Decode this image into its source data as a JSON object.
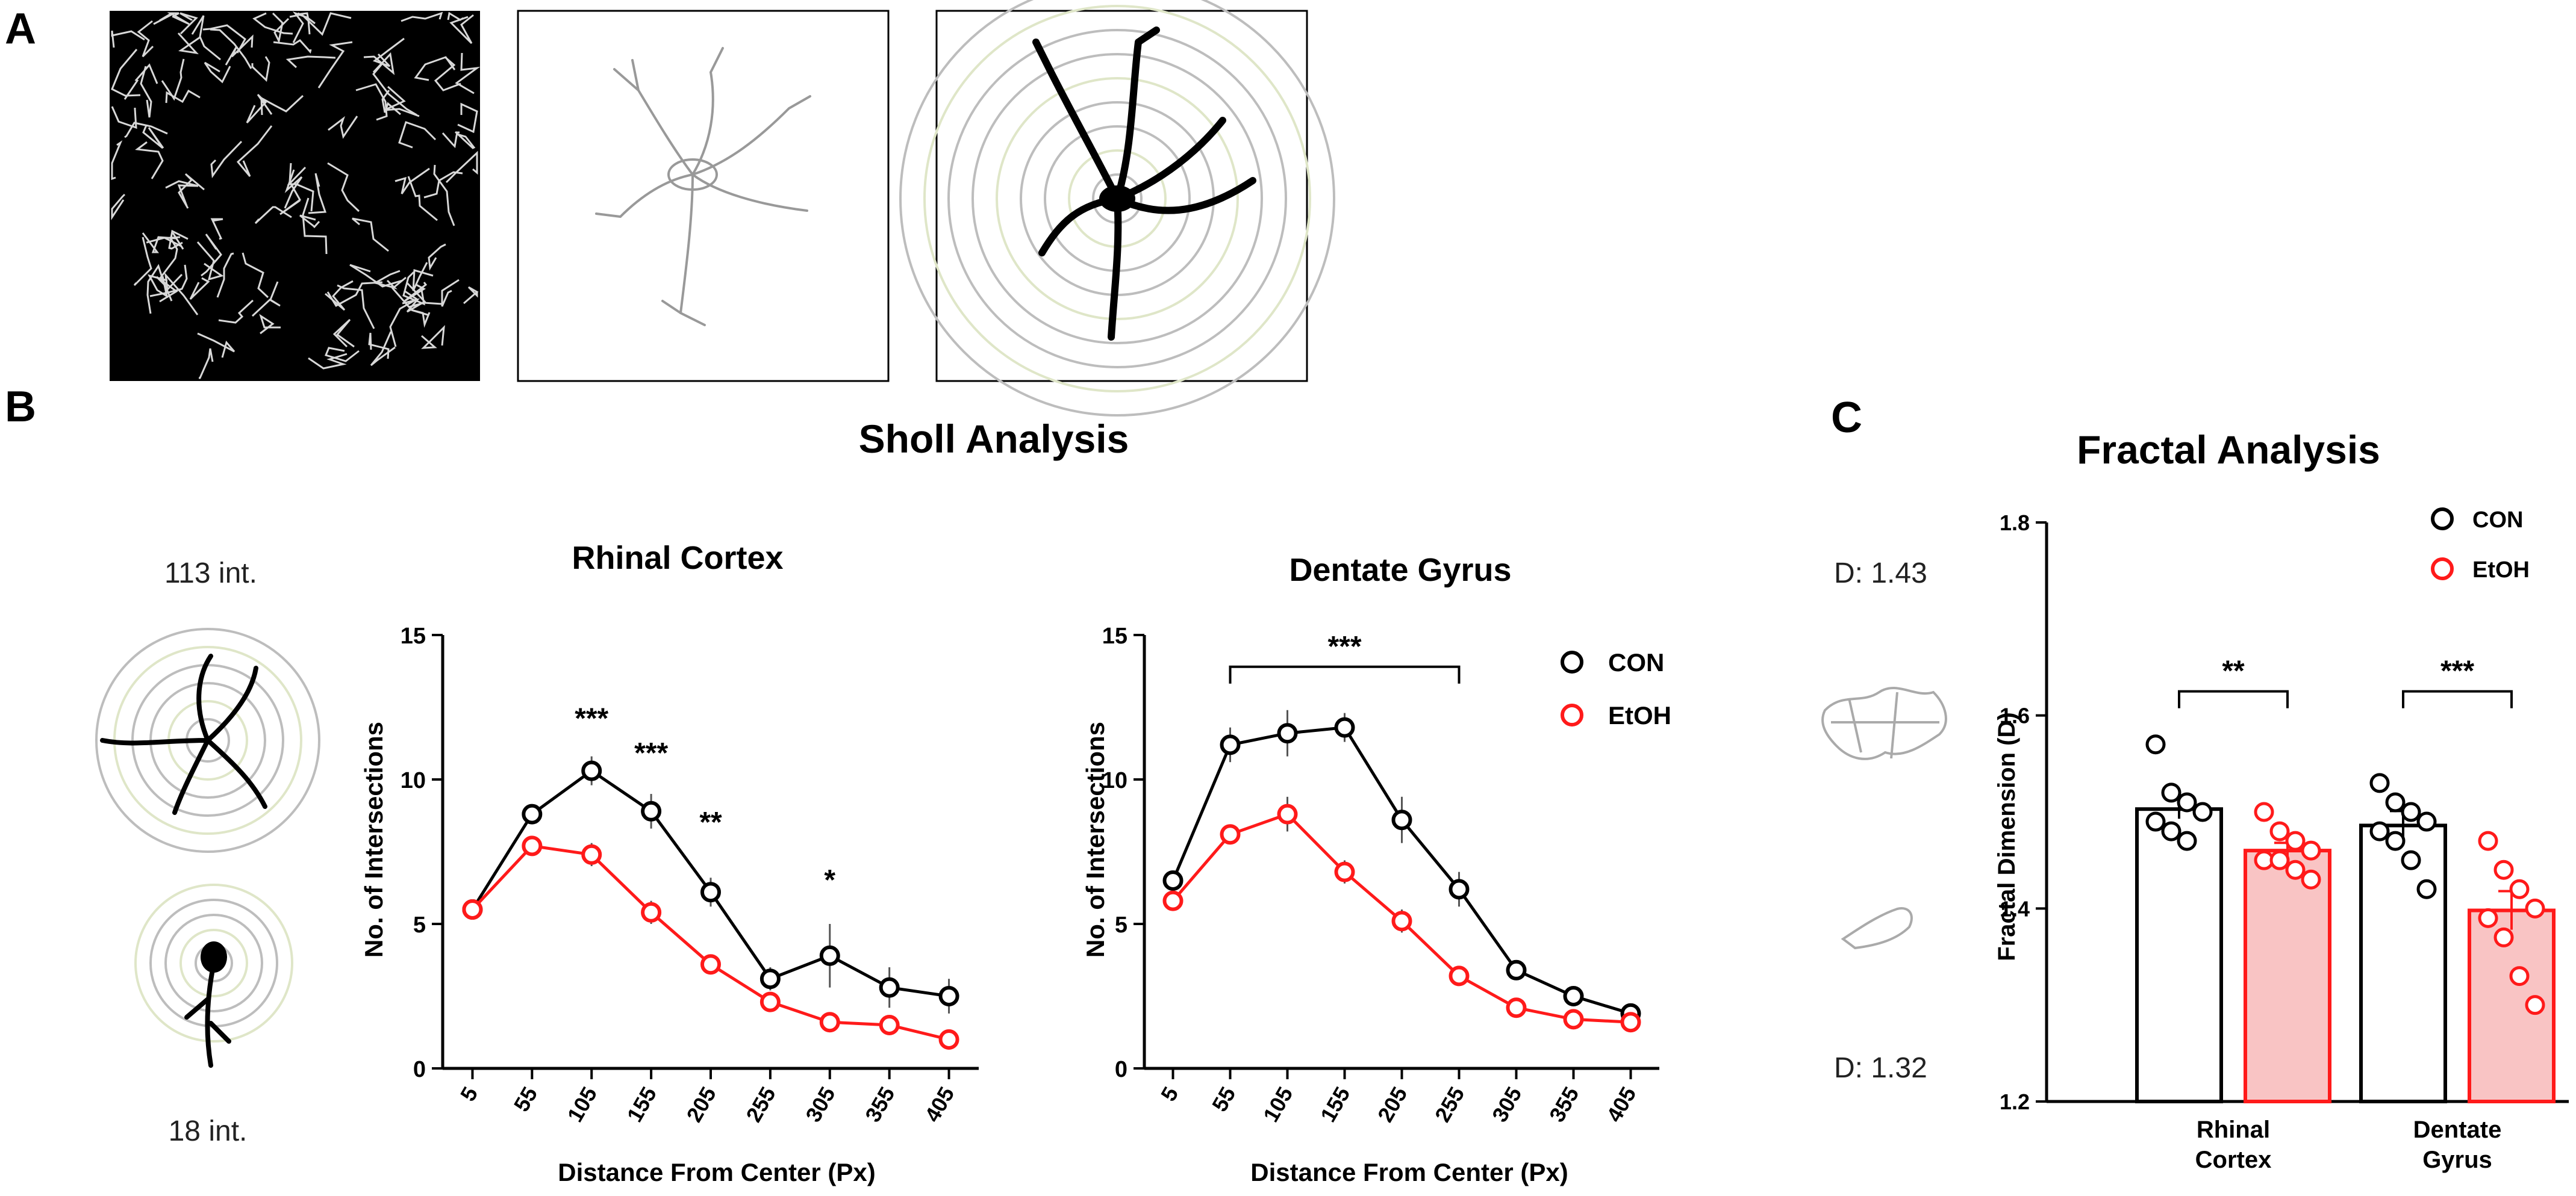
{
  "panel_letters": {
    "a": "A",
    "b": "B",
    "c": "C"
  },
  "sholl": {
    "heading": "Sholl Analysis",
    "example_high": "113 int.",
    "example_low": "18 int."
  },
  "fractal": {
    "heading": "Fractal Analysis",
    "example_high": "D: 1.43",
    "example_low": "D: 1.32"
  },
  "colors": {
    "con": "#000000",
    "etoh": "#ff1a1a",
    "etoh_fill": "#f9c4c4",
    "ring": "#bdbdbd"
  },
  "chart_data": [
    {
      "type": "line",
      "title": "Rhinal Cortex",
      "xlabel": "Distance From Center (Px)",
      "ylabel": "No. of Intersections",
      "categories": [
        "5",
        "55",
        "105",
        "155",
        "205",
        "255",
        "305",
        "355",
        "405"
      ],
      "ylim": [
        0,
        15
      ],
      "yticks": [
        0,
        5,
        10,
        15
      ],
      "series": [
        {
          "name": "CON",
          "values": [
            5.5,
            8.8,
            10.3,
            8.9,
            6.1,
            3.1,
            3.9,
            2.8,
            2.5
          ],
          "err": [
            0.3,
            0.3,
            0.5,
            0.6,
            0.5,
            0.4,
            1.1,
            0.7,
            0.6
          ]
        },
        {
          "name": "EtOH",
          "values": [
            5.5,
            7.7,
            7.4,
            5.4,
            3.6,
            2.3,
            1.6,
            1.5,
            1.0
          ],
          "err": [
            0.3,
            0.3,
            0.4,
            0.4,
            0.3,
            0.2,
            0.2,
            0.2,
            0.15
          ]
        }
      ],
      "annotations": [
        {
          "x": "105",
          "y": 12.2,
          "text": "***"
        },
        {
          "x": "155",
          "y": 11.0,
          "text": "***"
        },
        {
          "x": "205",
          "y": 8.6,
          "text": "**"
        },
        {
          "x": "305",
          "y": 6.6,
          "text": "*"
        }
      ]
    },
    {
      "type": "line",
      "title": "Dentate Gyrus",
      "xlabel": "Distance From Center (Px)",
      "ylabel": "No. of Intersections",
      "categories": [
        "5",
        "55",
        "105",
        "155",
        "205",
        "255",
        "305",
        "355",
        "405"
      ],
      "ylim": [
        0,
        15
      ],
      "yticks": [
        0,
        5,
        10,
        15
      ],
      "series": [
        {
          "name": "CON",
          "values": [
            6.5,
            11.2,
            11.6,
            11.8,
            8.6,
            6.2,
            3.4,
            2.5,
            1.9
          ],
          "err": [
            0.3,
            0.6,
            0.8,
            0.5,
            0.8,
            0.6,
            0.3,
            0.2,
            0.2
          ]
        },
        {
          "name": "EtOH",
          "values": [
            5.8,
            8.1,
            8.8,
            6.8,
            5.1,
            3.2,
            2.1,
            1.7,
            1.6
          ],
          "err": [
            0.3,
            0.3,
            0.6,
            0.4,
            0.4,
            0.3,
            0.2,
            0.2,
            0.2
          ]
        }
      ],
      "bracket": {
        "from": "55",
        "to": "255",
        "y": 13.9,
        "text": "***"
      },
      "legend": [
        {
          "name": "CON"
        },
        {
          "name": "EtOH"
        }
      ],
      "legend_position": "top-right"
    },
    {
      "type": "bar",
      "title": "",
      "ylabel": "Fractal Dimension (D)",
      "categories": [
        "Rhinal Cortex",
        "Dentate Gyrus"
      ],
      "category_lines": [
        [
          "Rhinal",
          "Cortex"
        ],
        [
          "Dentate",
          "Gyrus"
        ]
      ],
      "ylim": [
        1.2,
        1.8
      ],
      "yticks": [
        "1.2",
        "1.4",
        "1.6",
        "1.8"
      ],
      "series": [
        {
          "name": "CON",
          "values": [
            1.503,
            1.486
          ],
          "err": [
            0.01,
            0.015
          ],
          "points": [
            [
              1.57,
              1.52,
              1.51,
              1.5,
              1.49,
              1.48,
              1.47
            ],
            [
              1.53,
              1.51,
              1.5,
              1.49,
              1.48,
              1.47,
              1.45,
              1.42
            ]
          ]
        },
        {
          "name": "EtOH",
          "values": [
            1.46,
            1.398
          ],
          "err": [
            0.008,
            0.02
          ],
          "points": [
            [
              1.5,
              1.48,
              1.47,
              1.46,
              1.45,
              1.45,
              1.44,
              1.43
            ],
            [
              1.47,
              1.44,
              1.42,
              1.4,
              1.39,
              1.37,
              1.33,
              1.3
            ]
          ]
        }
      ],
      "brackets": [
        {
          "category": "Rhinal Cortex",
          "y": 1.625,
          "text": "**"
        },
        {
          "category": "Dentate Gyrus",
          "y": 1.625,
          "text": "***"
        }
      ],
      "legend": [
        {
          "name": "CON"
        },
        {
          "name": "EtOH"
        }
      ],
      "legend_position": "top-right"
    }
  ]
}
